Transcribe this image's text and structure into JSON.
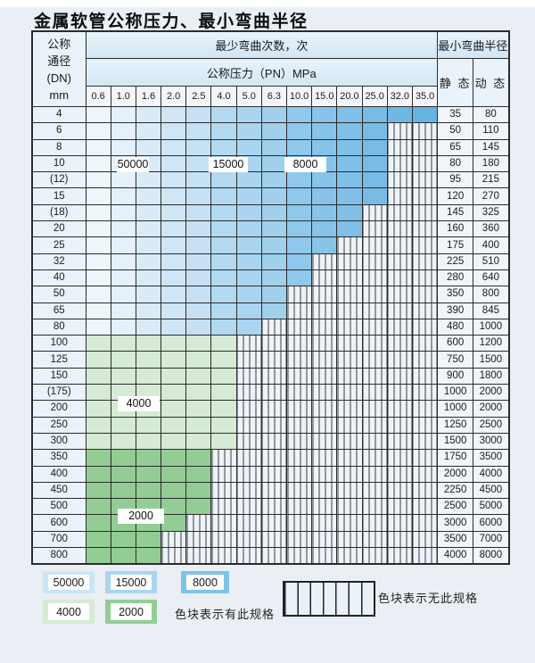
{
  "title": "金属软管公称压力、最小弯曲半径",
  "header": {
    "dn_lines": [
      "公称",
      "通径",
      "(DN)",
      "mm"
    ],
    "cycles_title": "最少弯曲次数，次",
    "pressure_title": "公称压力（PN）MPa",
    "radius_title": "最小弯曲半径",
    "static_label": "静 态",
    "dynamic_label": "动 态",
    "pressures": [
      "0.6",
      "1.0",
      "1.6",
      "2.0",
      "2.5",
      "4.0",
      "5.0",
      "6.3",
      "10.0",
      "15.0",
      "20.0",
      "25.0",
      "32.0",
      "35.0"
    ]
  },
  "rows": [
    {
      "dn": "4",
      "cols": 14,
      "band": "blue",
      "static": "35",
      "dynamic": "80"
    },
    {
      "dn": "6",
      "cols": 12,
      "band": "blue",
      "static": "50",
      "dynamic": "110"
    },
    {
      "dn": "8",
      "cols": 12,
      "band": "blue",
      "static": "65",
      "dynamic": "145"
    },
    {
      "dn": "10",
      "cols": 12,
      "band": "blue",
      "static": "80",
      "dynamic": "180"
    },
    {
      "dn": "(12)",
      "cols": 12,
      "band": "blue",
      "static": "95",
      "dynamic": "215"
    },
    {
      "dn": "15",
      "cols": 12,
      "band": "blue",
      "static": "120",
      "dynamic": "270"
    },
    {
      "dn": "(18)",
      "cols": 11,
      "band": "blue",
      "static": "145",
      "dynamic": "325"
    },
    {
      "dn": "20",
      "cols": 11,
      "band": "blue",
      "static": "160",
      "dynamic": "360"
    },
    {
      "dn": "25",
      "cols": 10,
      "band": "blue",
      "static": "175",
      "dynamic": "400"
    },
    {
      "dn": "32",
      "cols": 9,
      "band": "blue",
      "static": "225",
      "dynamic": "510"
    },
    {
      "dn": "40",
      "cols": 9,
      "band": "blue",
      "static": "280",
      "dynamic": "640"
    },
    {
      "dn": "50",
      "cols": 8,
      "band": "blue",
      "static": "350",
      "dynamic": "800"
    },
    {
      "dn": "65",
      "cols": 8,
      "band": "blue",
      "static": "390",
      "dynamic": "845"
    },
    {
      "dn": "80",
      "cols": 7,
      "band": "blue",
      "static": "480",
      "dynamic": "1000"
    },
    {
      "dn": "100",
      "cols": 6,
      "band": "g4000",
      "static": "600",
      "dynamic": "1200"
    },
    {
      "dn": "125",
      "cols": 6,
      "band": "g4000",
      "static": "750",
      "dynamic": "1500"
    },
    {
      "dn": "150",
      "cols": 6,
      "band": "g4000",
      "static": "900",
      "dynamic": "1800"
    },
    {
      "dn": "(175)",
      "cols": 6,
      "band": "g4000",
      "static": "1000",
      "dynamic": "2000"
    },
    {
      "dn": "200",
      "cols": 6,
      "band": "g4000",
      "static": "1000",
      "dynamic": "2000"
    },
    {
      "dn": "250",
      "cols": 6,
      "band": "g4000",
      "static": "1250",
      "dynamic": "2500"
    },
    {
      "dn": "300",
      "cols": 6,
      "band": "g4000",
      "static": "1500",
      "dynamic": "3000"
    },
    {
      "dn": "350",
      "cols": 5,
      "band": "g2000",
      "static": "1750",
      "dynamic": "3500"
    },
    {
      "dn": "400",
      "cols": 5,
      "band": "g2000",
      "static": "2000",
      "dynamic": "4000"
    },
    {
      "dn": "450",
      "cols": 5,
      "band": "g2000",
      "static": "2250",
      "dynamic": "4500"
    },
    {
      "dn": "500",
      "cols": 5,
      "band": "g2000",
      "static": "2500",
      "dynamic": "5000"
    },
    {
      "dn": "600",
      "cols": 4,
      "band": "g2000",
      "static": "3000",
      "dynamic": "6000"
    },
    {
      "dn": "700",
      "cols": 3,
      "band": "g2000",
      "static": "3500",
      "dynamic": "7000"
    },
    {
      "dn": "800",
      "cols": 3,
      "band": "g2000",
      "static": "4000",
      "dynamic": "8000"
    }
  ],
  "table_labels": {
    "l50000": "50000",
    "l15000": "15000",
    "l8000": "8000",
    "l4000": "4000",
    "l2000": "2000"
  },
  "colors": {
    "blue_50000": [
      "#EEF6FC",
      "#E4F0FA",
      "#DAEBF8",
      "#D0E6F6",
      "#C6E1F4"
    ],
    "blue_15000": [
      "#B3D9F1",
      "#AAD4EF",
      "#A1D0ED"
    ],
    "blue_8000": [
      "#90C8EB",
      "#88C4E9",
      "#80C0E7",
      "#78BCE5",
      "#70B8E3",
      "#68B4E1"
    ],
    "green_4000": "#D7EAD5",
    "green_2000": "#93CD95",
    "hatch_bg": "#EDF3F9"
  },
  "legend": {
    "items": [
      {
        "value": "50000",
        "color": "#CDE6F7"
      },
      {
        "value": "15000",
        "color": "#A9D5F1"
      },
      {
        "value": "8000",
        "color": "#7FC3EA"
      },
      {
        "value": "4000",
        "color": "#D7EAD5"
      },
      {
        "value": "2000",
        "color": "#93CD95"
      }
    ],
    "available_text": "色块表示有此规格",
    "unavailable_text": "色块表示无此规格"
  }
}
